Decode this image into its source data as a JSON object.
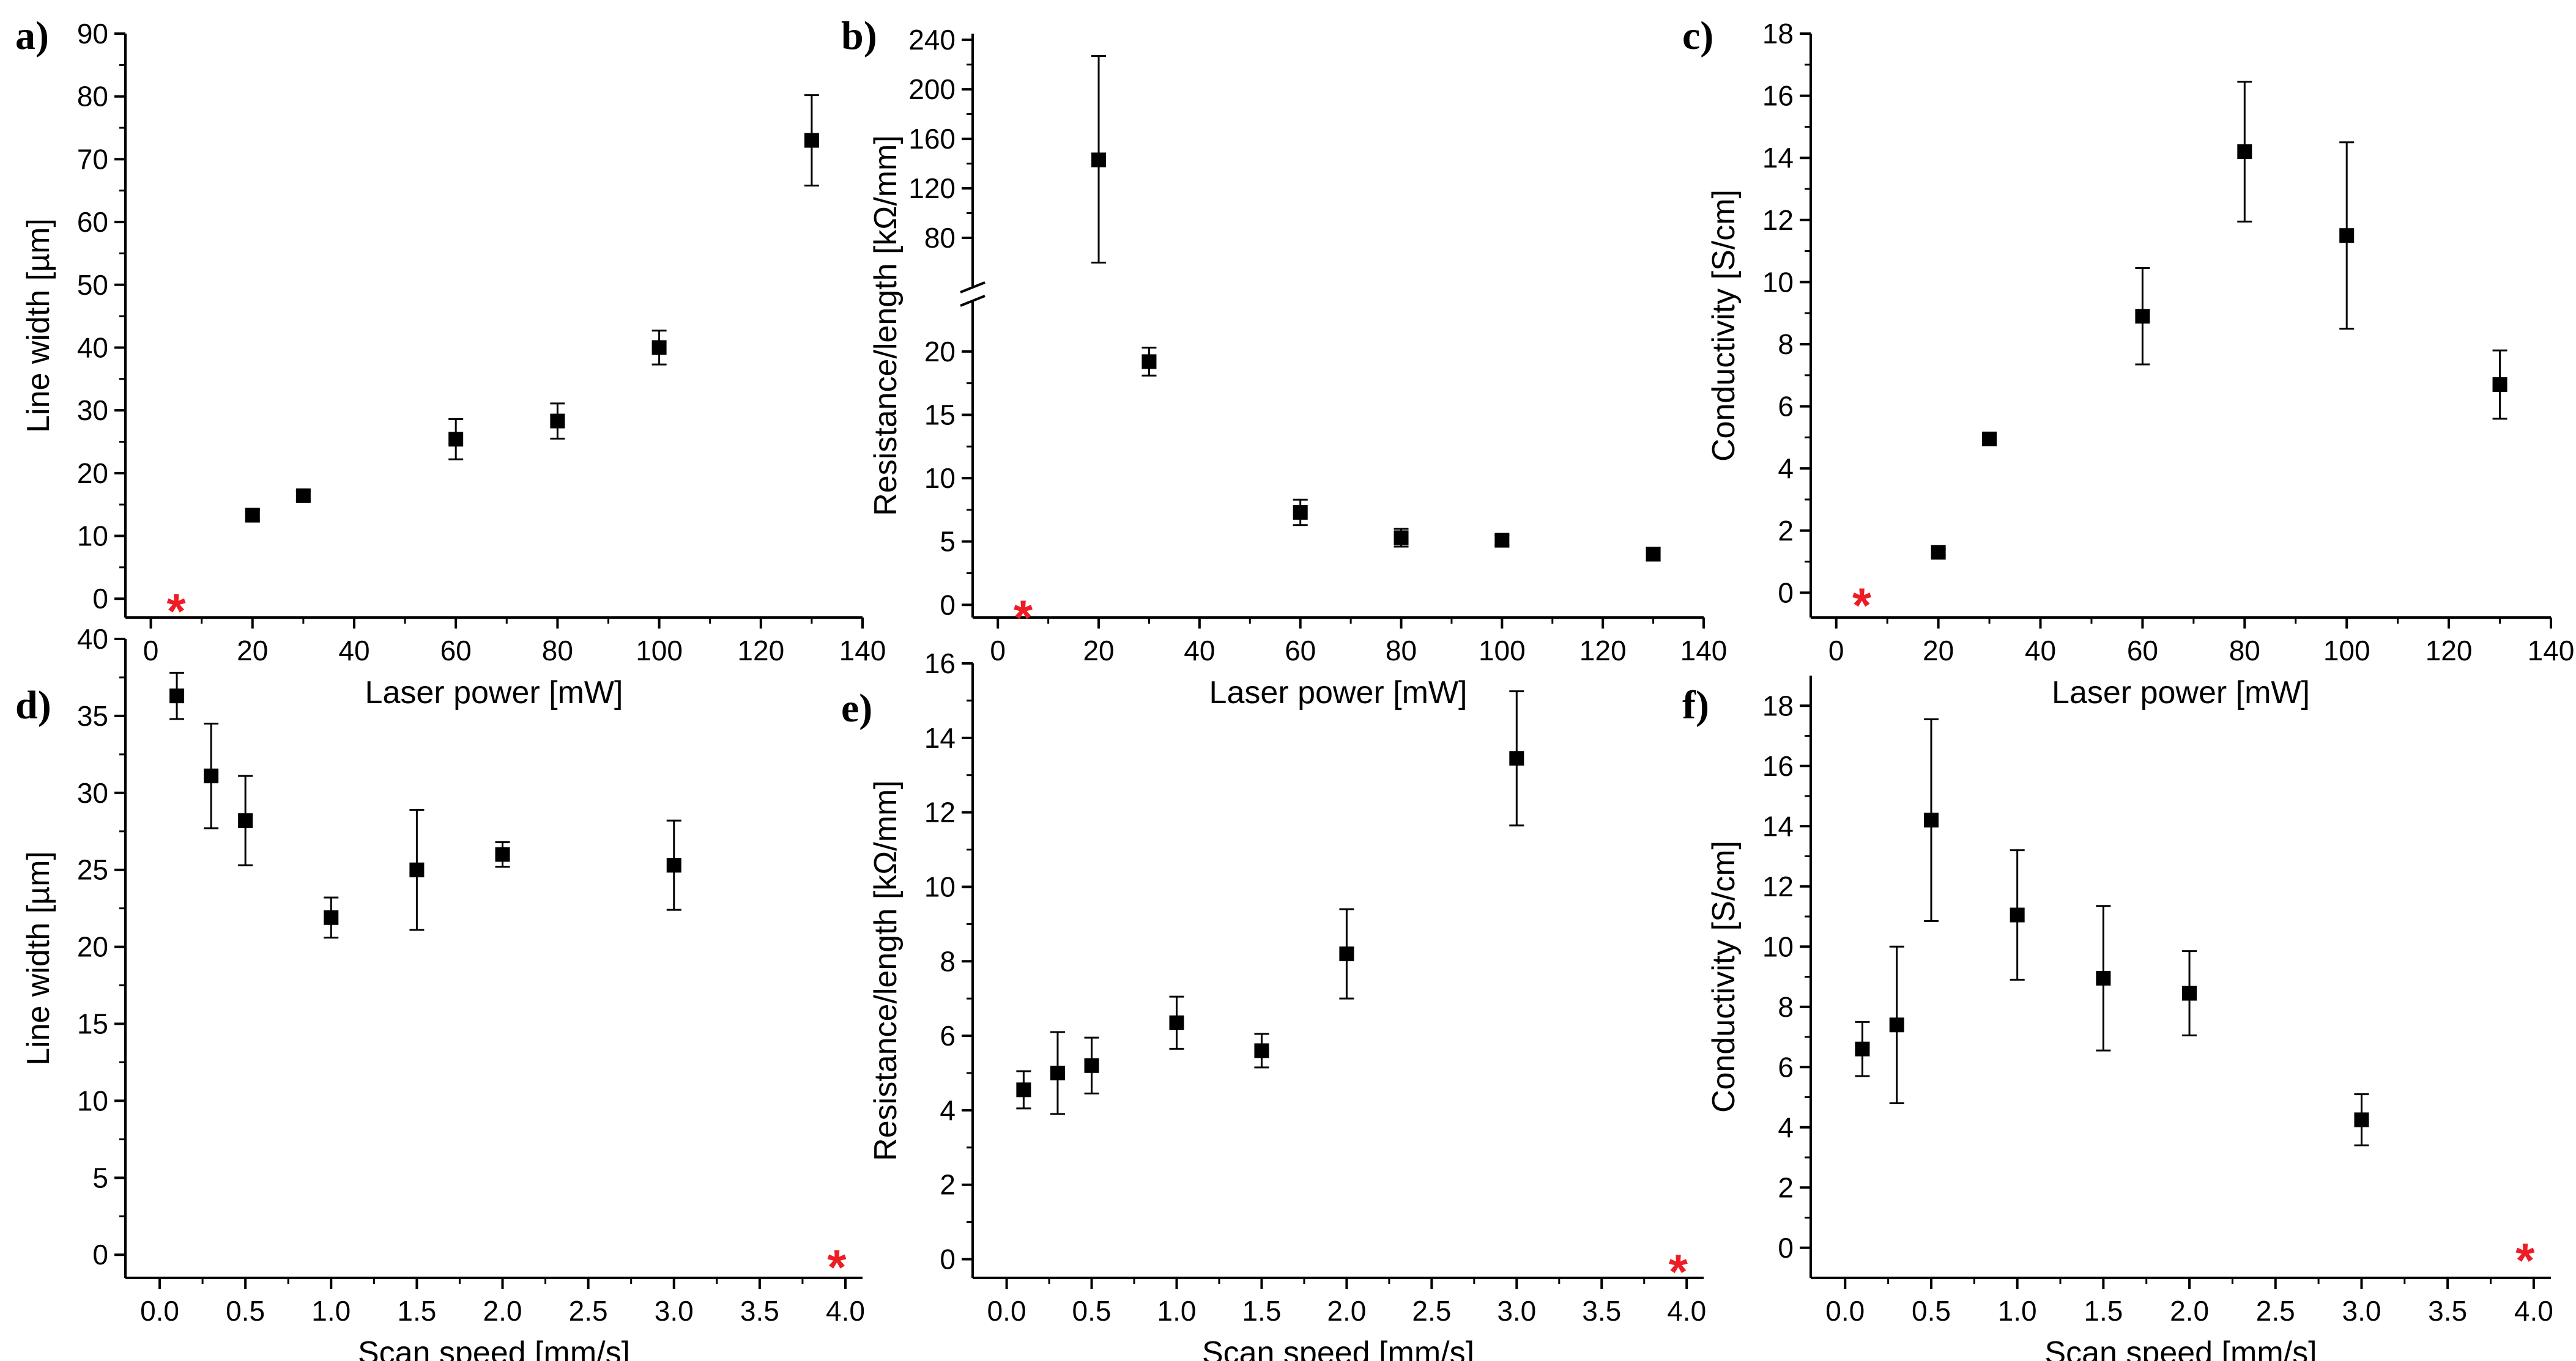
{
  "chart_data": [
    {
      "panel": "a)",
      "type": "scatter",
      "xlabel": "Laser power [mW]",
      "ylabel": "Line width [µm]",
      "xlim": [
        -5,
        140
      ],
      "ylim": [
        -3,
        90
      ],
      "xticks": [
        0,
        20,
        40,
        60,
        80,
        100,
        120,
        140
      ],
      "yticks": [
        0,
        10,
        20,
        30,
        40,
        50,
        60,
        70,
        80,
        90
      ],
      "x": [
        20,
        30,
        60,
        80,
        100,
        130
      ],
      "y": [
        13.3,
        16.4,
        25.4,
        28.3,
        40.0,
        73.0
      ],
      "err": [
        0.8,
        0.8,
        3.2,
        2.8,
        2.7,
        7.2
      ],
      "star": {
        "x": 5,
        "y": 0,
        "label": "*"
      }
    },
    {
      "panel": "b)",
      "type": "scatter",
      "xlabel": "Laser power [mW]",
      "ylabel": "Resistance/length [kΩ/mm]",
      "xlim": [
        -5,
        140
      ],
      "ylim_lower": [
        -1,
        24
      ],
      "ylim_upper": [
        40,
        245
      ],
      "axis_break": true,
      "xticks": [
        0,
        20,
        40,
        60,
        80,
        100,
        120,
        140
      ],
      "yticks_lower": [
        0,
        5,
        10,
        15,
        20
      ],
      "yticks_upper": [
        80,
        120,
        160,
        200,
        240
      ],
      "x": [
        20,
        30,
        60,
        80,
        100,
        130
      ],
      "y": [
        143,
        19.2,
        7.3,
        5.3,
        5.1,
        4.0
      ],
      "err_low": [
        83,
        1.1,
        1.0,
        0.7,
        0.4,
        0.5
      ],
      "err_high": [
        84,
        1.1,
        1.0,
        0.7,
        0.4,
        0.5
      ],
      "star": {
        "x": 5,
        "y": 0,
        "label": "*"
      }
    },
    {
      "panel": "c)",
      "type": "scatter",
      "xlabel": "Laser power [mW]",
      "ylabel": "Conductivity [S/cm]",
      "xlim": [
        -5,
        140
      ],
      "ylim": [
        -0.8,
        18
      ],
      "xticks": [
        0,
        20,
        40,
        60,
        80,
        100,
        120,
        140
      ],
      "yticks": [
        0,
        2,
        4,
        6,
        8,
        10,
        12,
        14,
        16,
        18
      ],
      "x": [
        20,
        30,
        60,
        80,
        100,
        130
      ],
      "y": [
        1.3,
        4.95,
        8.9,
        14.2,
        11.5,
        6.7
      ],
      "err": [
        0.1,
        0.15,
        1.55,
        2.25,
        3.0,
        1.1
      ],
      "star": {
        "x": 5,
        "y": 0,
        "label": "*"
      }
    },
    {
      "panel": "d)",
      "type": "scatter",
      "xlabel": "Scan speed [mm/s]",
      "ylabel": "Line width [µm]",
      "xlim": [
        -0.2,
        4.1
      ],
      "ylim": [
        -1.5,
        40
      ],
      "xticks": [
        0.0,
        0.5,
        1.0,
        1.5,
        2.0,
        2.5,
        3.0,
        3.5,
        4.0
      ],
      "yticks": [
        0,
        5,
        10,
        15,
        20,
        25,
        30,
        35,
        40
      ],
      "x": [
        0.1,
        0.3,
        0.5,
        1.0,
        1.5,
        2.0,
        3.0
      ],
      "y": [
        36.3,
        31.1,
        28.2,
        21.9,
        25.0,
        26.0,
        25.3
      ],
      "err": [
        1.5,
        3.4,
        2.9,
        1.3,
        3.9,
        0.8,
        2.9
      ],
      "star": {
        "x": 3.95,
        "y": 0,
        "label": "*"
      }
    },
    {
      "panel": "e)",
      "type": "scatter",
      "xlabel": "Scan speed [mm/s]",
      "ylabel": "Resistance/length [kΩ/mm]",
      "xlim": [
        -0.2,
        4.1
      ],
      "ylim": [
        -0.5,
        16
      ],
      "xticks": [
        0.0,
        0.5,
        1.0,
        1.5,
        2.0,
        2.5,
        3.0,
        3.5,
        4.0
      ],
      "yticks": [
        0,
        2,
        4,
        6,
        8,
        10,
        12,
        14,
        16
      ],
      "x": [
        0.1,
        0.3,
        0.5,
        1.0,
        1.5,
        2.0,
        3.0
      ],
      "y": [
        4.55,
        5.0,
        5.2,
        6.35,
        5.6,
        8.2,
        13.45
      ],
      "err": [
        0.5,
        1.1,
        0.75,
        0.7,
        0.45,
        1.2,
        1.8
      ],
      "star": {
        "x": 3.95,
        "y": 0,
        "label": "*"
      }
    },
    {
      "panel": "f)",
      "type": "scatter",
      "xlabel": "Scan speed [mm/s]",
      "ylabel": "Conductivity [S/cm]",
      "xlim": [
        -0.2,
        4.1
      ],
      "ylim": [
        -1.0,
        19
      ],
      "xticks": [
        0.0,
        0.5,
        1.0,
        1.5,
        2.0,
        2.5,
        3.0,
        3.5,
        4.0
      ],
      "yticks": [
        0,
        2,
        4,
        6,
        8,
        10,
        12,
        14,
        16,
        18
      ],
      "x": [
        0.1,
        0.3,
        0.5,
        1.0,
        1.5,
        2.0,
        3.0
      ],
      "y": [
        6.6,
        7.4,
        14.2,
        11.05,
        8.95,
        8.45,
        4.25
      ],
      "err": [
        0.9,
        2.6,
        3.35,
        2.15,
        2.4,
        1.4,
        0.85
      ],
      "star": {
        "x": 3.95,
        "y": 0,
        "label": "*"
      }
    }
  ],
  "colors": {
    "marker": "#000000",
    "star": "#ee1c25",
    "axis": "#000000",
    "background": "#ffffff"
  }
}
